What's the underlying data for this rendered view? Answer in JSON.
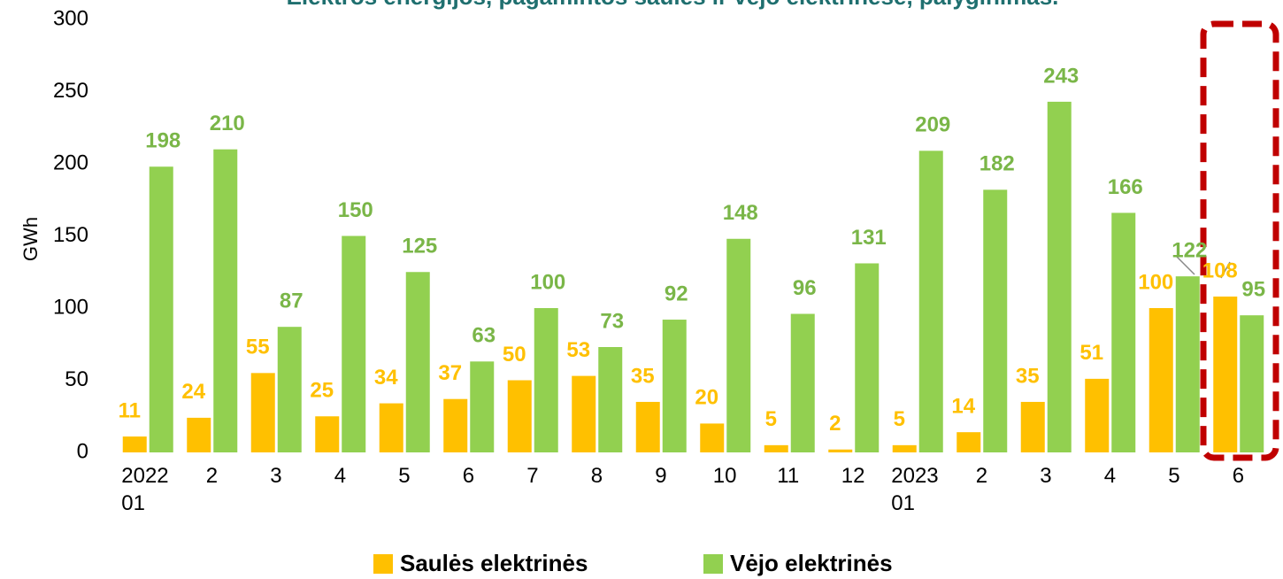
{
  "chart_data": {
    "type": "bar",
    "title": "Elektros energijos, pagamintos saulės ir vėjo elektrinėse, palyginimas.",
    "y_label": "GWh",
    "categories": [
      "2022\n01",
      "2",
      "3",
      "4",
      "5",
      "6",
      "7",
      "8",
      "9",
      "10",
      "11",
      "12",
      "2023\n01",
      "2",
      "3",
      "4",
      "5",
      "6"
    ],
    "series": [
      {
        "name": "Saulės elektrinės",
        "color": "#ffc000",
        "label_color": "#ffc000",
        "values": [
          11,
          24,
          55,
          25,
          34,
          37,
          50,
          53,
          35,
          20,
          5,
          2,
          5,
          14,
          35,
          51,
          100,
          108
        ]
      },
      {
        "name": "Vėjo elektrinės",
        "color": "#92d050",
        "label_color": "#7ab648",
        "values": [
          198,
          210,
          87,
          150,
          125,
          63,
          100,
          73,
          92,
          148,
          96,
          131,
          209,
          182,
          243,
          166,
          122,
          95
        ]
      }
    ],
    "ylim": [
      0,
      300
    ],
    "yticks": [
      0,
      50,
      100,
      150,
      200,
      250,
      300
    ],
    "grid": false
  }
}
